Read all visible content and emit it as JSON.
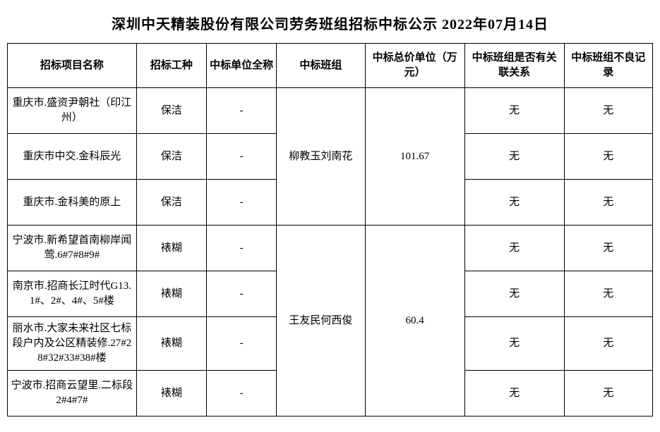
{
  "title": "深圳中天精装股份有限公司劳务班组招标中标公示 2022年07月14日",
  "columns": [
    "招标项目名称",
    "招标工种",
    "中标单位全称",
    "中标班组",
    "中标总价单位（万元）",
    "中标班组是否有关联关系",
    "中标班组不良记录"
  ],
  "group1": {
    "team": "柳教玉刘南花",
    "price": "101.67",
    "rows": [
      {
        "project": "重庆市.盛资尹朝社（印江州）",
        "type": "保洁",
        "unit": "-",
        "rel": "无",
        "bad": "无"
      },
      {
        "project": "重庆市中交.金科辰光",
        "type": "保洁",
        "unit": "-",
        "rel": "无",
        "bad": "无"
      },
      {
        "project": "重庆市.金科美的原上",
        "type": "保洁",
        "unit": "-",
        "rel": "无",
        "bad": "无"
      }
    ]
  },
  "group2": {
    "team": "王友民何西俊",
    "price": "60.4",
    "rows": [
      {
        "project": "宁波市.新希望首南柳岸闻莺.6#7#8#9#",
        "type": "裱糊",
        "unit": "-",
        "rel": "无",
        "bad": "无"
      },
      {
        "project": "南京市.招商长江时代G13.1#、2#、4#、5#楼",
        "type": "裱糊",
        "unit": "-",
        "rel": "无",
        "bad": "无"
      },
      {
        "project": "丽水市.大家未来社区七标段户内及公区精装修.27#28#32#33#38#楼",
        "type": "裱糊",
        "unit": "-",
        "rel": "无",
        "bad": "无"
      },
      {
        "project": "宁波市.招商云望里.二标段2#4#7#",
        "type": "裱糊",
        "unit": "-",
        "rel": "无",
        "bad": "无"
      }
    ]
  }
}
